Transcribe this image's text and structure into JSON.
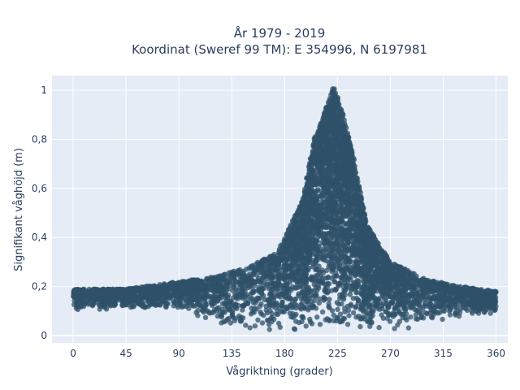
{
  "chart_data": {
    "type": "scatter",
    "title_line1": "År 1979 - 2019",
    "title_line2": "Koordinat (Sweref 99 TM): E 354996, N 6197981",
    "xlabel": "Vågriktning (grader)",
    "ylabel": "Signifikant våghöjd (m)",
    "xlim": [
      -18,
      370
    ],
    "ylim": [
      -0.03,
      1.06
    ],
    "x_ticks": [
      0,
      45,
      90,
      135,
      180,
      225,
      270,
      315,
      360
    ],
    "x_tick_labels": [
      "0",
      "45",
      "90",
      "135",
      "180",
      "225",
      "270",
      "315",
      "360"
    ],
    "y_ticks": [
      0,
      0.2,
      0.4,
      0.6,
      0.8,
      1
    ],
    "y_tick_labels": [
      "0",
      "0,2",
      "0,4",
      "0,6",
      "0,8",
      "1"
    ],
    "grid": true,
    "marker_color": "#2f5269",
    "background_color": "#e5ecf6",
    "envelope": [
      {
        "x": 0,
        "y_low": 0.1,
        "y_high": 0.19
      },
      {
        "x": 45,
        "y_low": 0.11,
        "y_high": 0.19
      },
      {
        "x": 90,
        "y_low": 0.1,
        "y_high": 0.22
      },
      {
        "x": 120,
        "y_low": 0.05,
        "y_high": 0.24
      },
      {
        "x": 150,
        "y_low": 0.02,
        "y_high": 0.28
      },
      {
        "x": 175,
        "y_low": 0.02,
        "y_high": 0.35
      },
      {
        "x": 195,
        "y_low": 0.02,
        "y_high": 0.55
      },
      {
        "x": 205,
        "y_low": 0.02,
        "y_high": 0.8
      },
      {
        "x": 215,
        "y_low": 0.02,
        "y_high": 0.93
      },
      {
        "x": 222,
        "y_low": 0.02,
        "y_high": 1.02
      },
      {
        "x": 230,
        "y_low": 0.02,
        "y_high": 0.9
      },
      {
        "x": 240,
        "y_low": 0.02,
        "y_high": 0.7
      },
      {
        "x": 250,
        "y_low": 0.02,
        "y_high": 0.45
      },
      {
        "x": 270,
        "y_low": 0.02,
        "y_high": 0.3
      },
      {
        "x": 300,
        "y_low": 0.04,
        "y_high": 0.23
      },
      {
        "x": 330,
        "y_low": 0.07,
        "y_high": 0.2
      },
      {
        "x": 360,
        "y_low": 0.08,
        "y_high": 0.18
      }
    ]
  }
}
